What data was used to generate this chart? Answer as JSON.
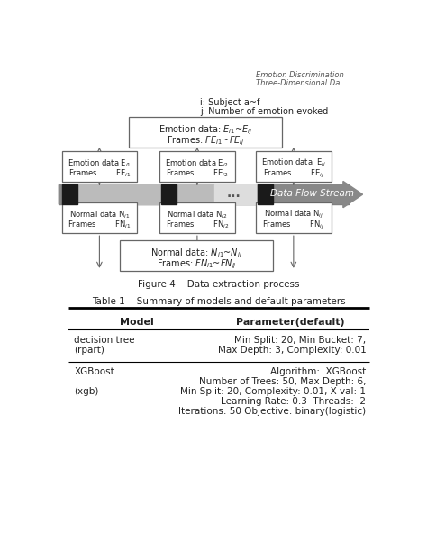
{
  "header1": "Emotion Discrimination",
  "header2": "Three-Dimensional Da",
  "leg_i": "i: Subject a~f",
  "leg_j": "j: Number of emotion evoked",
  "top_box_l1": "Emotion data: E$_{i1}$~E$_{ij}$",
  "top_box_l2": "Frames: FE$_{i1}$~FE$_{ij}$",
  "e_boxes": [
    [
      "Emotion data E$_{i1}$",
      "Frames        FE$_{i1}$"
    ],
    [
      "Emotion data E$_{i2}$",
      "Frames        FE$_{i2}$"
    ],
    [
      "Emotion data  E$_{ij}$",
      "Frames        FE$_{ij}$"
    ]
  ],
  "n_boxes": [
    [
      "Normal data N$_{i1}$",
      "Frames        FN$_{i1}$"
    ],
    [
      "Normal data N$_{i2}$",
      "Frames        FN$_{i2}$"
    ],
    [
      "Normal data N$_{ij}$",
      "Frames        FN$_{ij}$"
    ]
  ],
  "bot_box_l1": "Normal data: N$_{i1}$~N$_{ij}$",
  "bot_box_l2": "Frames: FN$_{i1}$~FN$_{ij}$",
  "stream_text": "Data Flow Stream",
  "fig_caption": "Figure 4    Data extraction process",
  "tbl_title": "Table 1    Summary of models and default parameters",
  "col1_header": "Model",
  "col2_header": "Parameter(default)",
  "row1_model_l1": "decision tree",
  "row1_model_l2": "(rpart)",
  "row1_param_l1": "Min Split: 20, Min Bucket: 7,",
  "row1_param_l2": "Max Depth: 3, Complexity: 0.01",
  "row2_model_l1": "XGBoost",
  "row2_model_l2": "(xgb)",
  "row2_param": [
    "Algorithm:  XGBoost",
    "Number of Trees: 50, Max Depth: 6,",
    "Min Split: 20, Complexity: 0.01, X val: 1",
    "Learning Rate: 0.3  Threads:  2",
    "Iterations: 50 Objective: binary(logistic)"
  ],
  "bg": "#ffffff",
  "tc": "#222222",
  "ec": "#666666"
}
